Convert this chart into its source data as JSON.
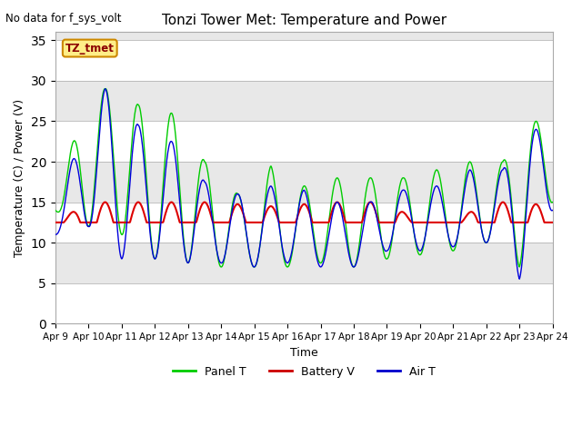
{
  "title": "Tonzi Tower Met: Temperature and Power",
  "no_data_text": "No data for f_sys_volt",
  "xlabel": "Time",
  "ylabel": "Temperature (C) / Power (V)",
  "ylim": [
    0,
    36
  ],
  "yticks": [
    0,
    5,
    10,
    15,
    20,
    25,
    30,
    35
  ],
  "x_labels": [
    "Apr 9",
    "Apr 10",
    "Apr 11",
    "Apr 12",
    "Apr 13",
    "Apr 14",
    "Apr 15",
    "Apr 16",
    "Apr 17",
    "Apr 18",
    "Apr 19",
    "Apr 20",
    "Apr 21",
    "Apr 22",
    "Apr 23",
    "Apr 24"
  ],
  "fig_bg": "#ffffff",
  "plot_bg": "#ffffff",
  "band_light": "#ffffff",
  "band_dark": "#e8e8e8",
  "legend_items": [
    "Panel T",
    "Battery V",
    "Air T"
  ],
  "legend_colors": [
    "#00cc00",
    "#cc0000",
    "#0000cc"
  ],
  "label_box_color": "#ffee88",
  "label_box_edge": "#cc8800",
  "label_text": "TZ_tmet",
  "panel_t_color": "#00cc00",
  "battery_v_color": "#dd0000",
  "air_t_color": "#0000dd",
  "num_points": 960
}
